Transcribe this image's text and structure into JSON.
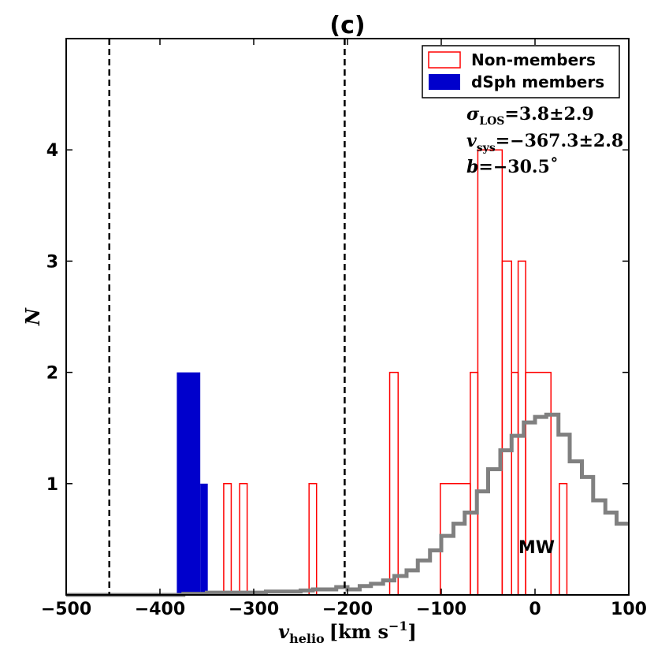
{
  "chart_data": {
    "type": "histogram",
    "title": "(c)",
    "xlabel": {
      "var": "v",
      "sub": "helio",
      "unit": "[km s",
      "sup": "−1",
      "close": "]"
    },
    "ylabel": "N",
    "xlim": [
      -500,
      100
    ],
    "ylim": [
      0,
      5
    ],
    "xticks": [
      -500,
      -400,
      -300,
      -200,
      -100,
      0,
      100
    ],
    "xtick_labels": [
      "−500",
      "−400",
      "−300",
      "−200",
      "−100",
      "0",
      "100"
    ],
    "yticks": [
      1,
      2,
      3,
      4
    ],
    "ytick_labels": [
      "1",
      "2",
      "3",
      "4"
    ],
    "vlines": [
      -454,
      -203
    ],
    "legend": {
      "position": "top-right",
      "entries": [
        {
          "label": "Non-members",
          "style": "outline",
          "color": "#ff0000"
        },
        {
          "label": "dSph members",
          "style": "filled",
          "color": "#0000cc"
        }
      ]
    },
    "annotations": {
      "sigma": {
        "sym": "σ",
        "sub": "LOS",
        "text": "=3.8±2.9"
      },
      "vsys": {
        "sym": "v",
        "sub": "sys",
        "text": "=−367.3±2.8"
      },
      "b": {
        "sym": "b",
        "text": "=−30.5˚"
      },
      "mw_label": "MW"
    },
    "series": [
      {
        "name": "dSph members",
        "style": "filled",
        "color": "#0000cc",
        "bins": [
          {
            "x0": -382,
            "x1": -357,
            "count": 2
          },
          {
            "x0": -357,
            "x1": -349,
            "count": 1
          }
        ]
      },
      {
        "name": "Non-members",
        "style": "outline",
        "color": "#ff0000",
        "bins": [
          {
            "x0": -332,
            "x1": -324,
            "count": 1
          },
          {
            "x0": -315,
            "x1": -307,
            "count": 1
          },
          {
            "x0": -241,
            "x1": -233,
            "count": 1
          },
          {
            "x0": -155,
            "x1": -146,
            "count": 2
          },
          {
            "x0": -101,
            "x1": -69,
            "count": 1
          },
          {
            "x0": -69,
            "x1": -61,
            "count": 2
          },
          {
            "x0": -61,
            "x1": -35,
            "count": 4
          },
          {
            "x0": -35,
            "x1": -25,
            "count": 3
          },
          {
            "x0": -25,
            "x1": -18,
            "count": 2
          },
          {
            "x0": -18,
            "x1": -10,
            "count": 3
          },
          {
            "x0": -10,
            "x1": 17,
            "count": 2
          },
          {
            "x0": 26,
            "x1": 34,
            "count": 1
          }
        ]
      },
      {
        "name": "MW",
        "style": "step",
        "color": "#808080",
        "x": [
          -500,
          -487,
          -475,
          -462,
          -450,
          -437,
          -425,
          -412,
          -400,
          -387,
          -375,
          -362,
          -350,
          -337,
          -325,
          -312,
          -300,
          -287,
          -275,
          -262,
          -250,
          -237,
          -225,
          -212,
          -200,
          -187,
          -175,
          -162,
          -150,
          -137,
          -125,
          -112,
          -100,
          -87,
          -75,
          -62,
          -50,
          -37,
          -25,
          -12,
          0,
          12,
          25,
          37,
          50,
          62,
          75,
          87,
          100
        ],
        "values": [
          0,
          0,
          0,
          0,
          0,
          0,
          0,
          0,
          0,
          0,
          0.01,
          0.01,
          0.02,
          0.02,
          0.02,
          0.02,
          0.02,
          0.03,
          0.03,
          0.03,
          0.04,
          0.05,
          0.05,
          0.07,
          0.05,
          0.08,
          0.1,
          0.13,
          0.17,
          0.22,
          0.31,
          0.4,
          0.53,
          0.64,
          0.74,
          0.93,
          1.13,
          1.3,
          1.43,
          1.55,
          1.6,
          1.62,
          1.44,
          1.2,
          1.06,
          0.85,
          0.74,
          0.64,
          0.55
        ]
      }
    ]
  }
}
